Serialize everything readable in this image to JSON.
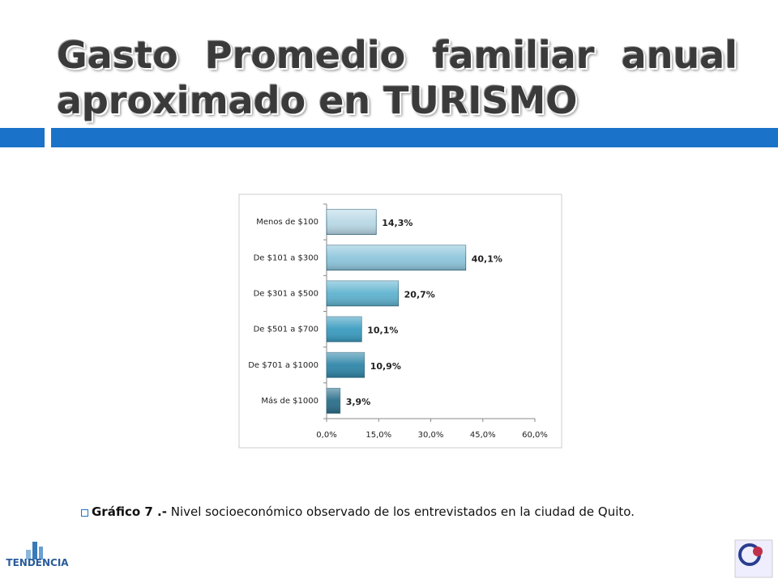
{
  "title": "Gasto Promedio familiar anual aproximado en TURISMO",
  "chart_data": {
    "type": "barh",
    "categories": [
      "Menos de $100",
      "De $101  a $300",
      "De $301  a $500",
      "De $501  a $700",
      "De $701  a $1000",
      "Más de $1000"
    ],
    "values": [
      14.3,
      40.1,
      20.7,
      10.1,
      10.9,
      3.9
    ],
    "value_labels": [
      "14,3%",
      "40,1%",
      "20,7%",
      "10,1%",
      "10,9%",
      "3,9%"
    ],
    "colors": [
      "#b9d8e6",
      "#8ec6dc",
      "#5fb2cf",
      "#3a9cc0",
      "#2f86a8",
      "#2a6e8a"
    ],
    "xlim": [
      0,
      60
    ],
    "xticks": [
      {
        "value": 0,
        "label": "0,0%"
      },
      {
        "value": 15,
        "label": "15,0%"
      },
      {
        "value": 30,
        "label": "30,0%"
      },
      {
        "value": 45,
        "label": "45,0%"
      },
      {
        "value": 60,
        "label": "60,0%"
      }
    ],
    "grid": false
  },
  "caption": {
    "label": "Gráfico 7 .-",
    "text": "Nivel socioeconómico observado de los entrevistados en la ciudad de Quito."
  },
  "logo": "TENDENCIA"
}
